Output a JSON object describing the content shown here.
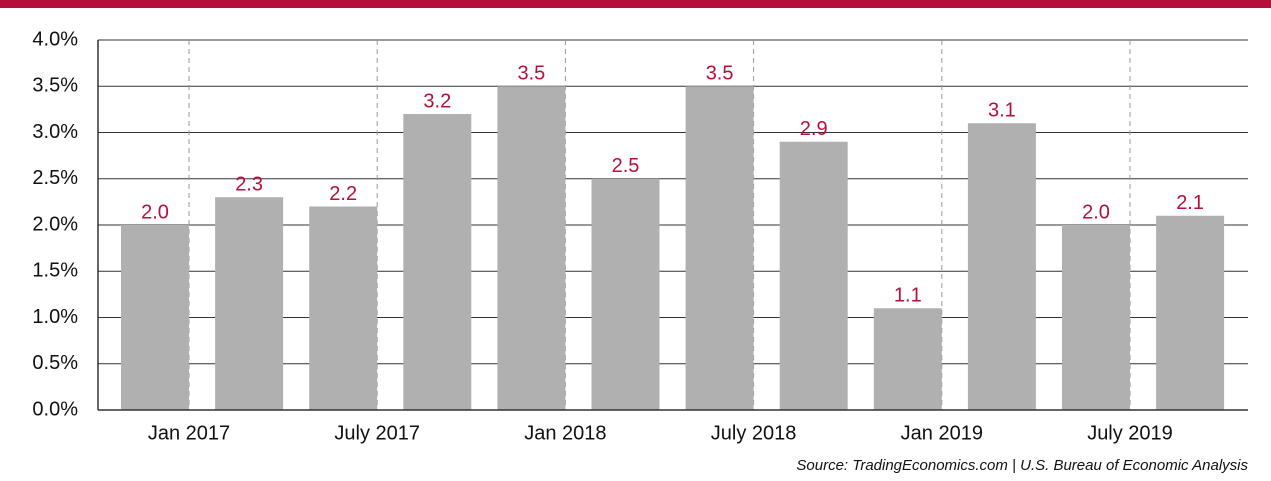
{
  "chart_data": {
    "type": "bar",
    "categories": [
      "Jan 2017",
      null,
      "July 2017",
      null,
      "Jan 2018",
      null,
      "July 2018",
      null,
      "Jan 2019",
      null,
      "July 2019",
      null
    ],
    "values": [
      2.0,
      2.3,
      2.2,
      3.2,
      3.5,
      2.5,
      3.5,
      2.9,
      1.1,
      3.1,
      2.0,
      2.1
    ],
    "value_labels": [
      "2.0",
      "2.3",
      "2.2",
      "3.2",
      "3.5",
      "2.5",
      "3.5",
      "2.9",
      "1.1",
      "3.1",
      "2.0",
      "2.1"
    ],
    "color": "#b0b0b0",
    "ylim": [
      0,
      4
    ],
    "yticks": [
      {
        "value": 0,
        "label": "0.0%"
      },
      {
        "value": 0.5,
        "label": "0.5%"
      },
      {
        "value": 1,
        "label": "1.0%"
      },
      {
        "value": 1.5,
        "label": "1.5%"
      },
      {
        "value": 2,
        "label": "2.0%"
      },
      {
        "value": 2.5,
        "label": "2.5%"
      },
      {
        "value": 3,
        "label": "3.0%"
      },
      {
        "value": 3.5,
        "label": "3.5%"
      },
      {
        "value": 4,
        "label": "4.0%"
      }
    ],
    "grid": true,
    "source": "Source: TradingEconomics.com | U.S. Bureau of Economic Analysis"
  }
}
